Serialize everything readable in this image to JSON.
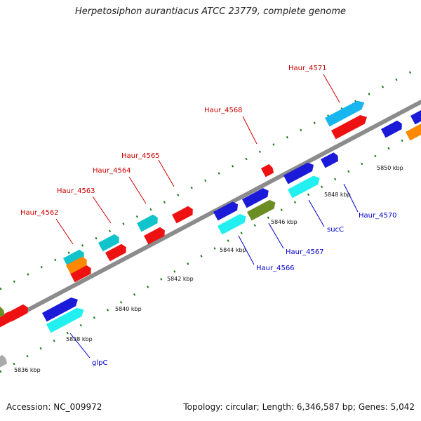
{
  "title": "Herpetosiphon aurantiacus ATCC 23779, complete genome",
  "footer": {
    "accession": "Accession: NC_009972",
    "stats": "Topology: circular; Length: 6,346,587 bp; Genes: 5,042"
  },
  "colors": {
    "backbone": "#8c8c8c",
    "tick": "#1a7a1a",
    "top_label": "#cc0000",
    "bottom_label": "#0000cc",
    "red_gene": "#ee1111",
    "cyan_gene": "#11c4cc",
    "blue_gene": "#1a1ad8",
    "aqua_gene": "#22f0f0",
    "orange_gene": "#ff8800",
    "olive_gene": "#6a8e23",
    "sky_gene": "#18b6ee"
  },
  "scale_labels": [
    "5836 kbp",
    "5838 kbp",
    "5840 kbp",
    "5842 kbp",
    "5844 kbp",
    "5846 kbp",
    "5848 kbp",
    "5850 kbp"
  ],
  "top_labels": [
    "Haur_4562",
    "Haur_4563",
    "Haur_4564",
    "Haur_4565",
    "Haur_4568",
    "Haur_4571"
  ],
  "bottom_labels": [
    "glpC",
    "Haur_4566",
    "Haur_4567",
    "sucC",
    "Haur_4570"
  ]
}
